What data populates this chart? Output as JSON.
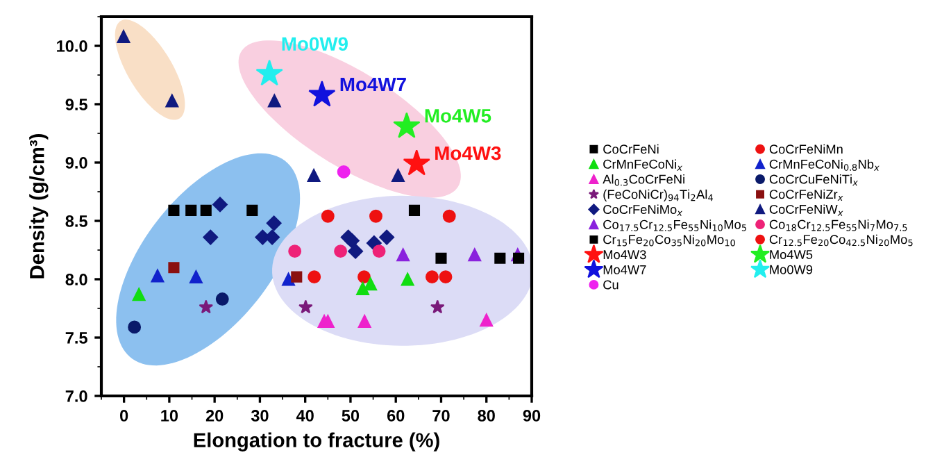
{
  "chart_data": {
    "type": "scatter",
    "xlabel": "Elongation to fracture (%)",
    "ylabel": "Density (g/cm³)",
    "xlim": [
      -5,
      90
    ],
    "ylim": [
      7.0,
      10.25
    ],
    "xticks": [
      0,
      10,
      20,
      30,
      40,
      50,
      60,
      70,
      80,
      90
    ],
    "yticks": [
      {
        "value": 7.0,
        "label": "7.0"
      },
      {
        "value": 7.5,
        "label": "7.5"
      },
      {
        "value": 8.0,
        "label": "8.0"
      },
      {
        "value": 8.5,
        "label": "8.5"
      },
      {
        "value": 9.0,
        "label": "9.0"
      },
      {
        "value": 9.5,
        "label": "9.5"
      },
      {
        "value": 10.0,
        "label": "10.0"
      }
    ],
    "grid": false,
    "legend": "right",
    "series": [
      {
        "name": "CoCrFeNi",
        "color": "#000000",
        "marker": "square",
        "x": [
          70,
          83
        ],
        "values": [
          8.18,
          8.18
        ]
      },
      {
        "name": "CoCrFeNiMn",
        "color": "#ee1111",
        "marker": "circle",
        "x": [
          42,
          53,
          68,
          71
        ],
        "values": [
          8.02,
          8.02,
          8.02,
          8.02
        ]
      },
      {
        "name": "CrMnFeCoNi$_{x}$",
        "color": "#11dd11",
        "marker": "triangle",
        "x": [
          3.3,
          52.7,
          54.4,
          62.6
        ],
        "values": [
          7.87,
          7.92,
          7.96,
          8.0
        ]
      },
      {
        "name": "CrMnFeCoNi$_{0.8}$Nb$_{x}$",
        "color": "#1122cc",
        "marker": "triangle",
        "x": [
          7.4,
          15.9,
          36.3
        ],
        "values": [
          8.03,
          8.02,
          8.0
        ]
      },
      {
        "name": "Al$_{0.3}$CoCrFeNi",
        "color": "#ee22cc",
        "marker": "triangle",
        "x": [
          44.2,
          45.0,
          53.1,
          80.0
        ],
        "values": [
          7.64,
          7.64,
          7.64,
          7.65
        ]
      },
      {
        "name": "CoCrCuFeNiTi$_{x}$",
        "color": "#0a1a6a",
        "marker": "circle",
        "x": [
          2.3,
          21.7
        ],
        "values": [
          7.59,
          7.83
        ]
      },
      {
        "name": "(FeCoNiCr)$_{94}$Ti$_{2}$Al$_{4}$",
        "color": "#7a1a7a",
        "marker": "star",
        "x": [
          18.1,
          40.1,
          69.2
        ],
        "values": [
          7.76,
          7.76,
          7.76
        ]
      },
      {
        "name": "CoCrFeNiZr$_{x}$",
        "color": "#8a1010",
        "marker": "square",
        "x": [
          11.0,
          38.1
        ],
        "values": [
          8.1,
          8.02
        ]
      },
      {
        "name": "CoCrFeNiMo$_{x}$",
        "color": "#101a80",
        "marker": "diamond",
        "x": [
          21.2,
          19.1,
          30.6,
          32.7,
          33.1,
          49.5,
          50.3,
          51.1,
          55.2,
          58.0
        ],
        "values": [
          8.64,
          8.36,
          8.36,
          8.36,
          8.48,
          8.36,
          8.33,
          8.24,
          8.31,
          8.36
        ]
      },
      {
        "name": "CoCrFeNiW$_{x}$",
        "color": "#101a80",
        "marker": "triangle",
        "x": [
          -0.1,
          10.6,
          33.2,
          41.9,
          60.5
        ],
        "values": [
          10.08,
          9.53,
          9.53,
          8.89,
          8.89
        ]
      },
      {
        "name": "Co$_{17.5}$Cr$_{12.5}$Fe$_{55}$Ni$_{10}$Mo$_{5}$",
        "color": "#8a22dd",
        "marker": "triangle",
        "x": [
          61.6,
          77.4,
          86.9
        ],
        "values": [
          8.21,
          8.21,
          8.21
        ]
      },
      {
        "name": "Co$_{18}$Cr$_{12.5}$Fe$_{55}$Ni$_{7}$Mo$_{7.5}$",
        "color": "#ee2277",
        "marker": "circle",
        "x": [
          37.7,
          47.8,
          56.3
        ],
        "values": [
          8.24,
          8.24,
          8.24
        ]
      },
      {
        "name": "Cr$_{15}$Fe$_{20}$Co$_{35}$Ni$_{20}$Mo$_{10}$",
        "color": "#000000",
        "marker": "square",
        "x": [
          11.0,
          14.8,
          18.1,
          28.3,
          64.1,
          87.1
        ],
        "values": [
          8.59,
          8.59,
          8.59,
          8.59,
          8.59,
          8.18
        ]
      },
      {
        "name": "Cr$_{12.5}$Fe$_{20}$Co$_{42.5}$Ni$_{20}$Mo$_{5}$",
        "color": "#ee1111",
        "marker": "circle",
        "x": [
          45.0,
          55.6,
          71.8
        ],
        "values": [
          8.54,
          8.54,
          8.54
        ]
      },
      {
        "name": "Mo4W3",
        "color": "#ff1111",
        "marker": "star",
        "x": [
          64.6
        ],
        "values": [
          8.99
        ]
      },
      {
        "name": "Mo4W5",
        "color": "#22ee22",
        "marker": "star",
        "x": [
          62.4
        ],
        "values": [
          9.31
        ]
      },
      {
        "name": "Mo4W7",
        "color": "#1111dd",
        "marker": "star",
        "x": [
          43.7
        ],
        "values": [
          9.58
        ]
      },
      {
        "name": "Mo0W9",
        "color": "#22eeee",
        "marker": "star",
        "x": [
          32.1
        ],
        "values": [
          9.76
        ]
      },
      {
        "name": "Cu",
        "color": "#ee22ee",
        "marker": "circle",
        "x": [
          48.5
        ],
        "values": [
          8.92
        ]
      }
    ],
    "annotations": [
      {
        "text": "Mo4W3",
        "x": 64.6,
        "y": 8.99
      },
      {
        "text": "Mo4W5",
        "x": 62.4,
        "y": 9.31
      },
      {
        "text": "Mo4W7",
        "x": 43.7,
        "y": 9.58
      },
      {
        "text": "Mo0W9",
        "x": 32.1,
        "y": 9.76
      }
    ]
  }
}
